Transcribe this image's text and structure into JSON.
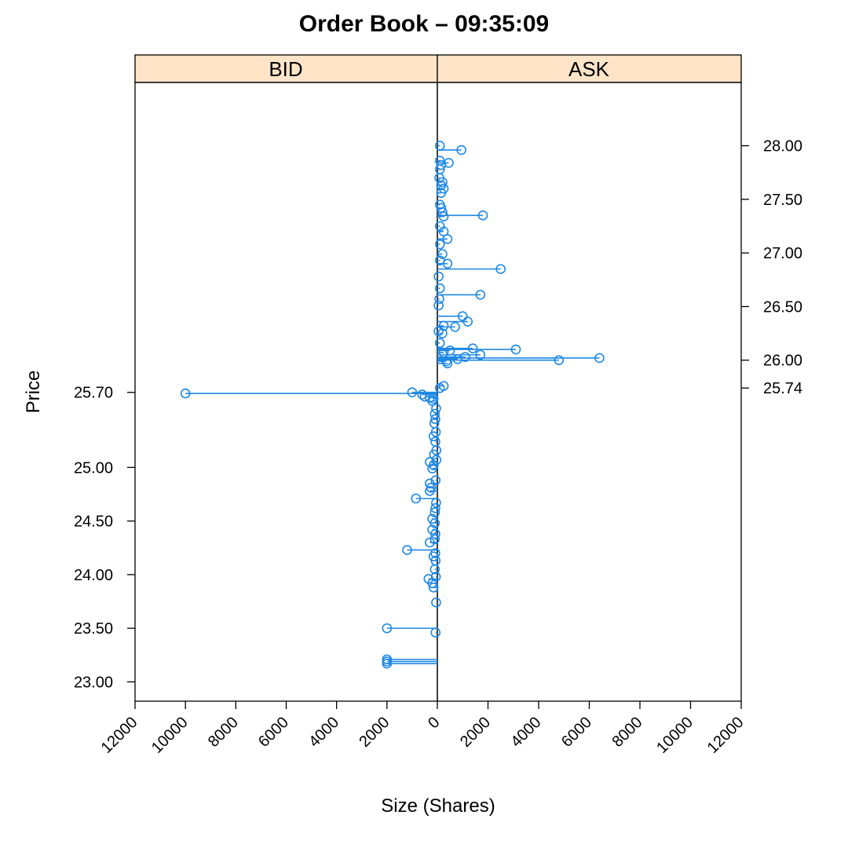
{
  "chart_data": {
    "type": "scatter",
    "title": "Order Book – 09:35:09",
    "xlabel": "Size (Shares)",
    "ylabel": "Price",
    "xlim": [
      -12000,
      12000
    ],
    "ylim": [
      22.82,
      28.59
    ],
    "x_ticks": [
      -12000,
      -10000,
      -8000,
      -6000,
      -4000,
      -2000,
      0,
      2000,
      4000,
      6000,
      8000,
      10000,
      12000
    ],
    "x_tick_labels": [
      "12000",
      "10000",
      "8000",
      "6000",
      "4000",
      "2000",
      "0",
      "2000",
      "4000",
      "6000",
      "8000",
      "10000",
      "12000"
    ],
    "bid_axis": {
      "side": "left",
      "ticks": [
        25.7,
        25.0,
        24.5,
        24.0,
        23.5,
        23.0
      ],
      "tick_labels": [
        "25.70",
        "25.00",
        "24.50",
        "24.00",
        "23.50",
        "23.00"
      ]
    },
    "ask_axis": {
      "side": "right",
      "ticks": [
        28.0,
        27.5,
        27.0,
        26.5,
        26.0,
        25.74
      ],
      "tick_labels": [
        "28.00",
        "27.50",
        "27.00",
        "26.50",
        "26.00",
        "25.74"
      ]
    },
    "panels": [
      "BID",
      "ASK"
    ],
    "colors": {
      "series": "#1E88E5",
      "strip": "#FFE4C8"
    },
    "series": [
      {
        "name": "BID",
        "points": [
          [
            25.69,
            10000
          ],
          [
            25.7,
            1000
          ],
          [
            25.68,
            600
          ],
          [
            25.66,
            500
          ],
          [
            25.65,
            300
          ],
          [
            25.64,
            150
          ],
          [
            25.62,
            200
          ],
          [
            25.55,
            50
          ],
          [
            25.5,
            100
          ],
          [
            25.45,
            80
          ],
          [
            25.41,
            120
          ],
          [
            25.33,
            60
          ],
          [
            25.29,
            150
          ],
          [
            25.24,
            80
          ],
          [
            25.16,
            40
          ],
          [
            25.12,
            130
          ],
          [
            25.07,
            40
          ],
          [
            25.05,
            300
          ],
          [
            25.02,
            150
          ],
          [
            24.99,
            200
          ],
          [
            24.88,
            70
          ],
          [
            24.85,
            300
          ],
          [
            24.81,
            250
          ],
          [
            24.78,
            300
          ],
          [
            24.71,
            850
          ],
          [
            24.67,
            50
          ],
          [
            24.62,
            80
          ],
          [
            24.58,
            100
          ],
          [
            24.52,
            200
          ],
          [
            24.48,
            100
          ],
          [
            24.42,
            200
          ],
          [
            24.38,
            80
          ],
          [
            24.33,
            100
          ],
          [
            24.3,
            300
          ],
          [
            24.23,
            1200
          ],
          [
            24.2,
            80
          ],
          [
            24.17,
            150
          ],
          [
            24.13,
            70
          ],
          [
            24.05,
            100
          ],
          [
            23.98,
            60
          ],
          [
            23.96,
            350
          ],
          [
            23.92,
            200
          ],
          [
            23.88,
            150
          ],
          [
            23.74,
            50
          ],
          [
            23.5,
            2000
          ],
          [
            23.46,
            70
          ],
          [
            23.21,
            2000
          ],
          [
            23.19,
            2000
          ],
          [
            23.17,
            2000
          ]
        ]
      },
      {
        "name": "ASK",
        "points": [
          [
            25.74,
            100
          ],
          [
            25.76,
            250
          ],
          [
            25.97,
            400
          ],
          [
            25.99,
            350
          ],
          [
            26.0,
            4800
          ],
          [
            26.01,
            800
          ],
          [
            26.02,
            6400
          ],
          [
            26.03,
            1100
          ],
          [
            26.05,
            1700
          ],
          [
            26.07,
            250
          ],
          [
            26.09,
            500
          ],
          [
            26.1,
            3100
          ],
          [
            26.11,
            1400
          ],
          [
            26.16,
            100
          ],
          [
            26.25,
            200
          ],
          [
            26.27,
            50
          ],
          [
            26.31,
            700
          ],
          [
            26.32,
            250
          ],
          [
            26.36,
            1200
          ],
          [
            26.41,
            1000
          ],
          [
            26.51,
            50
          ],
          [
            26.57,
            80
          ],
          [
            26.61,
            1700
          ],
          [
            26.67,
            100
          ],
          [
            26.78,
            50
          ],
          [
            26.85,
            2500
          ],
          [
            26.9,
            400
          ],
          [
            26.93,
            100
          ],
          [
            26.99,
            200
          ],
          [
            27.08,
            100
          ],
          [
            27.13,
            400
          ],
          [
            27.2,
            250
          ],
          [
            27.25,
            100
          ],
          [
            27.34,
            250
          ],
          [
            27.35,
            1800
          ],
          [
            27.38,
            200
          ],
          [
            27.42,
            150
          ],
          [
            27.45,
            100
          ],
          [
            27.56,
            150
          ],
          [
            27.6,
            250
          ],
          [
            27.63,
            150
          ],
          [
            27.66,
            200
          ],
          [
            27.7,
            80
          ],
          [
            27.78,
            100
          ],
          [
            27.82,
            150
          ],
          [
            27.84,
            450
          ],
          [
            27.86,
            100
          ],
          [
            27.96,
            950
          ],
          [
            28.0,
            100
          ]
        ]
      }
    ]
  }
}
